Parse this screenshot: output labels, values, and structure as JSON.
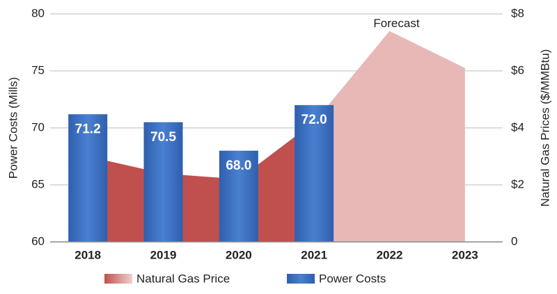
{
  "chart_data": {
    "type": "bar_area",
    "categories": [
      "2018",
      "2019",
      "2020",
      "2021",
      "2022",
      "2023"
    ],
    "series": [
      {
        "name": "Power Costs",
        "color": "#3a6fc2",
        "values": [
          71.2,
          70.5,
          68.0,
          72.0,
          null,
          null
        ],
        "value_labels": [
          "71.2",
          "70.5",
          "68.0",
          "72.0",
          null,
          null
        ]
      },
      {
        "name": "Natural Gas Price",
        "color": "#c0504d",
        "forecast_color": "#e8b8b7",
        "axis": "y2",
        "values": [
          3.0,
          2.4,
          2.2,
          4.2,
          7.4,
          6.1
        ]
      }
    ],
    "forecast": {
      "text": "Forecast",
      "from_index": 3
    },
    "ylabel": "Power Costs (Mills)",
    "y2label": "Natural Gas Prices ($/MMBtu)",
    "ylim": [
      60,
      80
    ],
    "yticks": [
      60,
      65,
      70,
      75,
      80
    ],
    "y2lim": [
      0,
      8
    ],
    "y2ticks": [
      0,
      {
        "value": 2,
        "label": "$2"
      },
      {
        "value": 4,
        "label": "$4"
      },
      {
        "value": 6,
        "label": "$6"
      },
      {
        "value": 8,
        "label": "$8"
      }
    ],
    "grid": true,
    "legend": "bottom"
  }
}
